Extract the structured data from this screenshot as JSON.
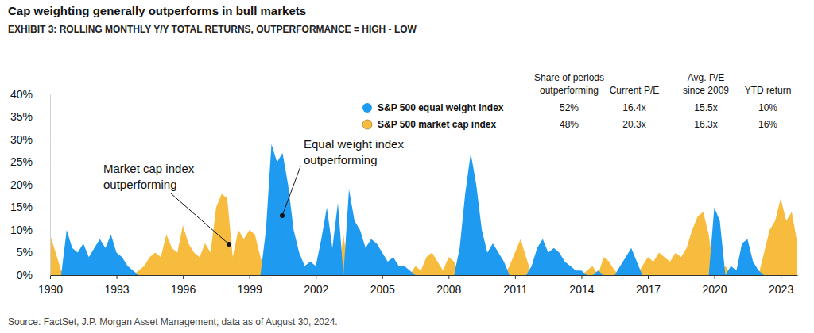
{
  "chart_data": {
    "type": "area",
    "title": "Cap weighting generally outperforms in bull markets",
    "subtitle": "EXHIBIT 3: ROLLING MONTHLY Y/Y TOTAL RETURNS, OUTPERFORMANCE = HIGH - LOW",
    "source": "Source: FactSet, J.P. Morgan Asset Management; data as of August 30, 2024.",
    "legend_columns": [
      [
        "Share of periods",
        "outperforming"
      ],
      [
        "Current P/E"
      ],
      [
        "Avg. P/E",
        "since 2009"
      ],
      [
        "YTD return"
      ]
    ],
    "annotations": [
      {
        "text": [
          "Market cap index",
          "outperforming"
        ]
      },
      {
        "text": [
          "Equal weight index",
          "outperforming"
        ]
      }
    ],
    "x": [
      1990,
      1990.25,
      1990.5,
      1990.75,
      1991,
      1991.25,
      1991.5,
      1991.75,
      1992,
      1992.25,
      1992.5,
      1992.75,
      1993,
      1993.25,
      1993.5,
      1993.75,
      1994,
      1994.25,
      1994.5,
      1994.75,
      1995,
      1995.25,
      1995.5,
      1995.75,
      1996,
      1996.25,
      1996.5,
      1996.75,
      1997,
      1997.25,
      1997.5,
      1997.75,
      1998,
      1998.25,
      1998.5,
      1998.75,
      1999,
      1999.25,
      1999.5,
      1999.75,
      2000,
      2000.25,
      2000.5,
      2000.75,
      2001,
      2001.25,
      2001.5,
      2001.75,
      2002,
      2002.25,
      2002.5,
      2002.75,
      2003,
      2003.25,
      2003.5,
      2003.75,
      2004,
      2004.25,
      2004.5,
      2004.75,
      2005,
      2005.25,
      2005.5,
      2005.75,
      2006,
      2006.25,
      2006.5,
      2006.75,
      2007,
      2007.25,
      2007.5,
      2007.75,
      2008,
      2008.25,
      2008.5,
      2008.75,
      2009,
      2009.25,
      2009.5,
      2009.75,
      2010,
      2010.25,
      2010.5,
      2010.75,
      2011,
      2011.25,
      2011.5,
      2011.75,
      2012,
      2012.25,
      2012.5,
      2012.75,
      2013,
      2013.25,
      2013.5,
      2013.75,
      2014,
      2014.25,
      2014.5,
      2014.75,
      2015,
      2015.25,
      2015.5,
      2015.75,
      2016,
      2016.25,
      2016.5,
      2016.75,
      2017,
      2017.25,
      2017.5,
      2017.75,
      2018,
      2018.25,
      2018.5,
      2018.75,
      2019,
      2019.25,
      2019.5,
      2019.75,
      2020,
      2020.25,
      2020.5,
      2020.75,
      2021,
      2021.25,
      2021.5,
      2021.75,
      2022,
      2022.25,
      2022.5,
      2022.75,
      2023,
      2023.25,
      2023.5,
      2023.75
    ],
    "series": [
      {
        "name": "S&P 500 equal weight index",
        "color": "#1e9bf0",
        "stats": [
          "52%",
          "16.4x",
          "15.5x",
          "10%"
        ],
        "values": [
          0,
          0,
          0,
          10,
          6,
          5,
          7,
          4,
          6,
          8,
          6,
          9,
          5,
          4,
          2,
          1,
          0,
          0,
          0,
          0,
          0,
          0,
          0,
          0,
          0,
          0,
          0,
          0,
          0,
          0,
          0,
          0,
          0,
          0,
          0,
          0,
          0,
          0,
          0,
          10,
          29,
          25,
          27,
          20,
          10,
          5,
          2,
          3,
          2,
          8,
          15,
          6,
          16,
          0,
          19,
          12,
          10,
          6,
          8,
          7,
          5,
          3,
          4,
          2,
          2,
          1,
          0,
          0,
          0,
          0,
          0,
          0,
          0,
          0,
          6,
          18,
          27,
          20,
          10,
          5,
          7,
          5,
          3,
          0,
          0,
          0,
          0,
          2,
          6,
          8,
          5,
          6,
          5,
          3,
          2,
          1,
          1,
          0,
          0,
          1,
          0,
          0,
          0,
          2,
          4,
          6,
          3,
          0,
          0,
          0,
          0,
          0,
          0,
          0,
          0,
          0,
          0,
          0,
          0,
          0,
          15,
          12,
          0,
          2,
          1,
          7,
          8,
          3,
          1,
          0,
          0,
          0,
          0,
          0,
          0,
          0
        ]
      },
      {
        "name": "S&P 500 market cap index",
        "color": "#f7bb3d",
        "stats": [
          "48%",
          "20.3x",
          "16.3x",
          "16%"
        ],
        "values": [
          9,
          5,
          1,
          0,
          0,
          0,
          0,
          0,
          0,
          0,
          0,
          0,
          0,
          0,
          0,
          0,
          1,
          2,
          4,
          5,
          4,
          9,
          6,
          5,
          11,
          7,
          5,
          4,
          7,
          5,
          15,
          18,
          17,
          4,
          10,
          8,
          10,
          9,
          4,
          0,
          0,
          0,
          0,
          0,
          0,
          0,
          0,
          0,
          0,
          0,
          0,
          0,
          0,
          9,
          0,
          0,
          0,
          0,
          0,
          0,
          0,
          0,
          0,
          0,
          0,
          0,
          2,
          1,
          4,
          5,
          3,
          1,
          4,
          3,
          0,
          0,
          0,
          0,
          0,
          0,
          0,
          0,
          0,
          2,
          5,
          8,
          4,
          0,
          0,
          0,
          0,
          0,
          0,
          0,
          0,
          0,
          0,
          1,
          2,
          0,
          4,
          3,
          1,
          0,
          0,
          0,
          0,
          2,
          4,
          3,
          5,
          4,
          3,
          5,
          4,
          6,
          10,
          13,
          14,
          9,
          0,
          0,
          2,
          0,
          0,
          0,
          0,
          0,
          0,
          5,
          10,
          12,
          17,
          12,
          14,
          7
        ]
      }
    ],
    "xlim": [
      1990,
      2023.75
    ],
    "xticks": [
      1990,
      1993,
      1996,
      1999,
      2002,
      2005,
      2008,
      2011,
      2014,
      2017,
      2020,
      2023
    ],
    "ylim": [
      0,
      40
    ],
    "yticks": [
      {
        "value": 0,
        "label": "0%"
      },
      {
        "value": 5,
        "label": "5%"
      },
      {
        "value": 10,
        "label": "10%"
      },
      {
        "value": 15,
        "label": "15%"
      },
      {
        "value": 20,
        "label": "20%"
      },
      {
        "value": 25,
        "label": "25%"
      },
      {
        "value": 30,
        "label": "30%"
      },
      {
        "value": 35,
        "label": "35%"
      },
      {
        "value": 40,
        "label": "40%"
      }
    ],
    "grid": false
  }
}
